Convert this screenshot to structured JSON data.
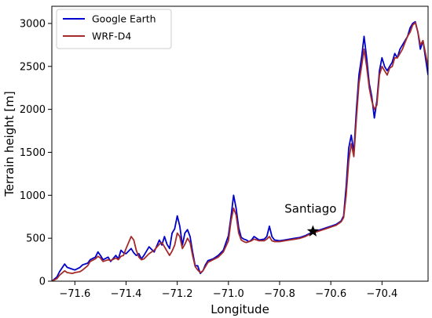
{
  "chart_data": {
    "type": "line",
    "xlabel": "Longitude",
    "ylabel": "Terrain height [m]",
    "xlim": [
      -71.69,
      -70.22
    ],
    "ylim": [
      0,
      3200
    ],
    "grid": false,
    "legend_placement": "top-left",
    "x_ticks": [
      -71.6,
      -71.4,
      -71.2,
      -71.0,
      -70.8,
      -70.6,
      -70.4
    ],
    "x_tick_labels": [
      "−71.6",
      "−71.4",
      "−71.2",
      "−71.0",
      "−70.8",
      "−70.6",
      "−70.4"
    ],
    "y_ticks": [
      0,
      500,
      1000,
      1500,
      2000,
      2500,
      3000
    ],
    "y_tick_labels": [
      "0",
      "500",
      "1000",
      "1500",
      "2000",
      "2500",
      "3000"
    ],
    "annotation": {
      "text": "Santiago",
      "marker": "star",
      "x": -70.67,
      "y": 580
    },
    "series": [
      {
        "name": "Google Earth",
        "color": "#0000cc",
        "x": [
          -71.69,
          -71.67,
          -71.66,
          -71.64,
          -71.63,
          -71.61,
          -71.6,
          -71.58,
          -71.57,
          -71.55,
          -71.54,
          -71.52,
          -71.51,
          -71.5,
          -71.49,
          -71.47,
          -71.46,
          -71.44,
          -71.43,
          -71.42,
          -71.41,
          -71.4,
          -71.38,
          -71.37,
          -71.36,
          -71.35,
          -71.34,
          -71.33,
          -71.31,
          -71.29,
          -71.27,
          -71.26,
          -71.25,
          -71.24,
          -71.23,
          -71.22,
          -71.21,
          -71.2,
          -71.19,
          -71.18,
          -71.17,
          -71.16,
          -71.15,
          -71.14,
          -71.13,
          -71.12,
          -71.11,
          -71.1,
          -71.09,
          -71.08,
          -71.06,
          -71.04,
          -71.02,
          -71.0,
          -70.99,
          -70.98,
          -70.97,
          -70.96,
          -70.95,
          -70.94,
          -70.93,
          -70.92,
          -70.91,
          -70.9,
          -70.88,
          -70.86,
          -70.85,
          -70.84,
          -70.83,
          -70.82,
          -70.8,
          -70.78,
          -70.76,
          -70.74,
          -70.72,
          -70.7,
          -70.68,
          -70.66,
          -70.64,
          -70.62,
          -70.6,
          -70.58,
          -70.56,
          -70.55,
          -70.54,
          -70.53,
          -70.52,
          -70.51,
          -70.5,
          -70.49,
          -70.48,
          -70.47,
          -70.46,
          -70.45,
          -70.44,
          -70.43,
          -70.42,
          -70.41,
          -70.4,
          -70.39,
          -70.38,
          -70.37,
          -70.36,
          -70.35,
          -70.34,
          -70.33,
          -70.32,
          -70.31,
          -70.3,
          -70.29,
          -70.28,
          -70.27,
          -70.26,
          -70.25,
          -70.24,
          -70.23,
          -70.22
        ],
        "y": [
          0,
          50,
          110,
          200,
          160,
          140,
          130,
          160,
          190,
          210,
          250,
          280,
          340,
          300,
          250,
          280,
          230,
          300,
          260,
          360,
          330,
          320,
          380,
          330,
          300,
          320,
          260,
          300,
          400,
          340,
          480,
          420,
          520,
          430,
          380,
          560,
          610,
          760,
          640,
          420,
          560,
          600,
          520,
          340,
          180,
          180,
          90,
          120,
          190,
          240,
          260,
          300,
          360,
          530,
          750,
          1000,
          850,
          620,
          510,
          490,
          480,
          460,
          480,
          520,
          480,
          490,
          520,
          640,
          520,
          480,
          470,
          480,
          490,
          500,
          510,
          530,
          560,
          580,
          600,
          620,
          640,
          660,
          700,
          760,
          1100,
          1550,
          1700,
          1500,
          2000,
          2400,
          2600,
          2850,
          2600,
          2300,
          2150,
          1900,
          2100,
          2450,
          2600,
          2500,
          2450,
          2500,
          2550,
          2650,
          2600,
          2700,
          2750,
          2800,
          2850,
          2950,
          3000,
          3020,
          2900,
          2700,
          2800,
          2600,
          2400
        ]
      },
      {
        "name": "WRF-D4",
        "color": "#a52a2a",
        "x": [
          -71.69,
          -71.67,
          -71.66,
          -71.64,
          -71.63,
          -71.61,
          -71.6,
          -71.58,
          -71.57,
          -71.55,
          -71.54,
          -71.52,
          -71.51,
          -71.5,
          -71.49,
          -71.47,
          -71.46,
          -71.44,
          -71.43,
          -71.42,
          -71.41,
          -71.4,
          -71.38,
          -71.37,
          -71.36,
          -71.35,
          -71.34,
          -71.33,
          -71.31,
          -71.29,
          -71.27,
          -71.26,
          -71.25,
          -71.24,
          -71.23,
          -71.22,
          -71.21,
          -71.2,
          -71.19,
          -71.18,
          -71.17,
          -71.16,
          -71.15,
          -71.14,
          -71.13,
          -71.12,
          -71.11,
          -71.1,
          -71.09,
          -71.08,
          -71.06,
          -71.04,
          -71.02,
          -71.0,
          -70.99,
          -70.98,
          -70.97,
          -70.96,
          -70.95,
          -70.94,
          -70.93,
          -70.92,
          -70.91,
          -70.9,
          -70.88,
          -70.86,
          -70.85,
          -70.84,
          -70.83,
          -70.82,
          -70.8,
          -70.78,
          -70.76,
          -70.74,
          -70.72,
          -70.7,
          -70.68,
          -70.66,
          -70.64,
          -70.62,
          -70.6,
          -70.58,
          -70.56,
          -70.55,
          -70.54,
          -70.53,
          -70.52,
          -70.51,
          -70.5,
          -70.49,
          -70.48,
          -70.47,
          -70.46,
          -70.45,
          -70.44,
          -70.43,
          -70.42,
          -70.41,
          -70.4,
          -70.39,
          -70.38,
          -70.37,
          -70.36,
          -70.35,
          -70.34,
          -70.33,
          -70.32,
          -70.31,
          -70.3,
          -70.29,
          -70.28,
          -70.27,
          -70.26,
          -70.25,
          -70.24,
          -70.23,
          -70.22
        ],
        "y": [
          0,
          30,
          70,
          120,
          100,
          90,
          100,
          110,
          130,
          180,
          230,
          260,
          290,
          270,
          230,
          250,
          240,
          270,
          250,
          290,
          300,
          380,
          520,
          480,
          360,
          280,
          250,
          260,
          320,
          360,
          430,
          450,
          400,
          350,
          300,
          350,
          420,
          560,
          520,
          380,
          430,
          500,
          450,
          300,
          170,
          130,
          100,
          120,
          170,
          220,
          250,
          280,
          340,
          470,
          700,
          850,
          770,
          560,
          480,
          460,
          450,
          460,
          470,
          490,
          470,
          470,
          490,
          520,
          470,
          460,
          460,
          470,
          480,
          490,
          500,
          520,
          550,
          570,
          590,
          610,
          630,
          650,
          690,
          740,
          1000,
          1400,
          1600,
          1450,
          1900,
          2300,
          2500,
          2700,
          2500,
          2250,
          2100,
          2000,
          2050,
          2400,
          2500,
          2450,
          2400,
          2480,
          2500,
          2600,
          2600,
          2650,
          2700,
          2780,
          2850,
          2900,
          2980,
          3010,
          2900,
          2750,
          2800,
          2650,
          2500
        ]
      }
    ]
  }
}
